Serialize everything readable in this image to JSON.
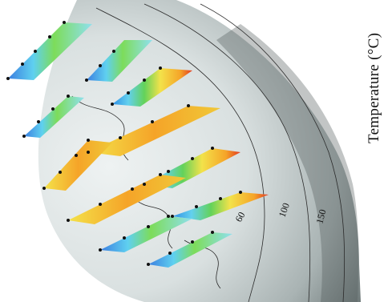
{
  "figure": {
    "axis_title": "Temperature (°C)",
    "contour_labels": [
      "60",
      "100",
      "150"
    ],
    "colors": {
      "background": "#ffffff",
      "globe_light": "#e4eaea",
      "globe_dark": "#6d7878",
      "contour": "#2a2a2a",
      "band_blue": "#2f8fe6",
      "band_cyan": "#63d0ee",
      "band_green": "#63d25a",
      "band_yellow": "#f3e24a",
      "band_orange": "#f5a428",
      "band_red": "#e23a22",
      "sensor_dot": "#111111"
    },
    "strip_count": 11
  }
}
